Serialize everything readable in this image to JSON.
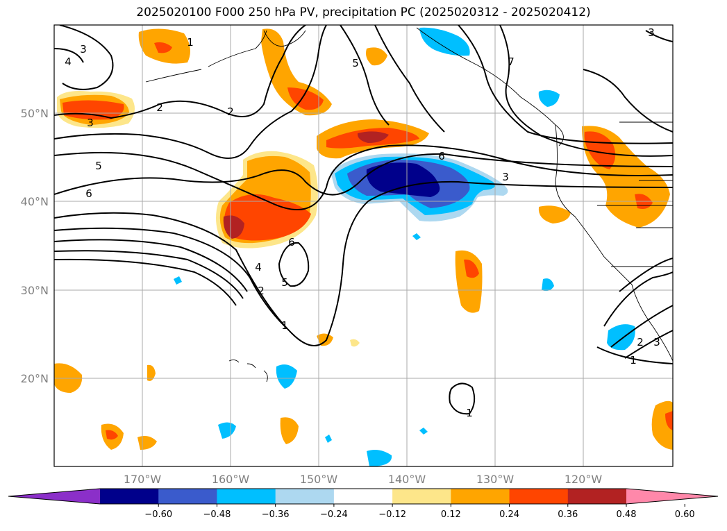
{
  "title": "2025020100 F000 250 hPa PV, precipitation PC (2025020312 - 2025020412)",
  "map": {
    "lon_ticks": [
      "170°W",
      "160°W",
      "150°W",
      "140°W",
      "130°W",
      "120°W"
    ],
    "lat_ticks": [
      "50°N",
      "40°N",
      "30°N",
      "20°N"
    ],
    "pv_contour_labels": [
      "1",
      "2",
      "3",
      "4",
      "5",
      "6",
      "7"
    ]
  },
  "colorbar": {
    "tick_labels": [
      "−0.60",
      "−0.48",
      "−0.36",
      "−0.24",
      "−0.12",
      "0.12",
      "0.24",
      "0.36",
      "0.48",
      "0.60"
    ],
    "colors": [
      "#8b2fc9",
      "#00008b",
      "#3a5bcc",
      "#00bfff",
      "#add8f0",
      "#ffffff",
      "#fde68a",
      "#ffa500",
      "#ff4500",
      "#b22222",
      "#ff88aa"
    ]
  },
  "colors": {
    "dark_blue": "#00008b",
    "mid_blue": "#3a5bcc",
    "cyan": "#00bfff",
    "light_blue": "#add8f0",
    "light_yellow": "#fde68a",
    "orange": "#ffa500",
    "red_orange": "#ff4500",
    "dark_red": "#b22222"
  }
}
